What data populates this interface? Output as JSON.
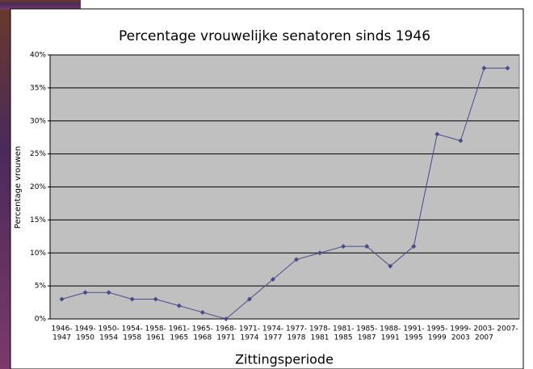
{
  "chart_data": {
    "type": "line",
    "title": "Percentage vrouwelijke senatoren sinds 1946",
    "xlabel": "Zittingsperiode",
    "ylabel": "Percentage vrouwen",
    "categories": [
      [
        "1946-",
        "1947"
      ],
      [
        "1949-",
        "1950"
      ],
      [
        "1950-",
        "1954"
      ],
      [
        "1954-",
        "1958"
      ],
      [
        "1958-",
        "1961"
      ],
      [
        "1961-",
        "1965"
      ],
      [
        "1965-",
        "1968"
      ],
      [
        "1968-",
        "1971"
      ],
      [
        "1971-",
        "1974"
      ],
      [
        "1974-",
        "1977"
      ],
      [
        "1977-",
        "1978"
      ],
      [
        "1978-",
        "1981"
      ],
      [
        "1981-",
        "1985"
      ],
      [
        "1985-",
        "1987"
      ],
      [
        "1988-",
        "1991"
      ],
      [
        "1991-",
        "1995"
      ],
      [
        "1995-",
        "1999"
      ],
      [
        "1999-",
        "2003"
      ],
      [
        "2003-",
        "2007"
      ],
      [
        "2007-"
      ]
    ],
    "series": [
      {
        "color": "#4a4a8a",
        "values": [
          3,
          4,
          4,
          3,
          3,
          2,
          1,
          0,
          3,
          6,
          9,
          10,
          11,
          11,
          8,
          11,
          28,
          27,
          38,
          38
        ]
      }
    ],
    "ylim": [
      0,
      40
    ],
    "yticks": [
      {
        "value": 0,
        "label": "0%"
      },
      {
        "value": 5,
        "label": "5%"
      },
      {
        "value": 10,
        "label": "10%"
      },
      {
        "value": 15,
        "label": "15%"
      },
      {
        "value": 20,
        "label": "20%"
      },
      {
        "value": 25,
        "label": "25%"
      },
      {
        "value": 30,
        "label": "30%"
      },
      {
        "value": 35,
        "label": "35%"
      },
      {
        "value": 40,
        "label": "40%"
      }
    ],
    "grid": true,
    "plot_background": "#c0c0c0"
  }
}
